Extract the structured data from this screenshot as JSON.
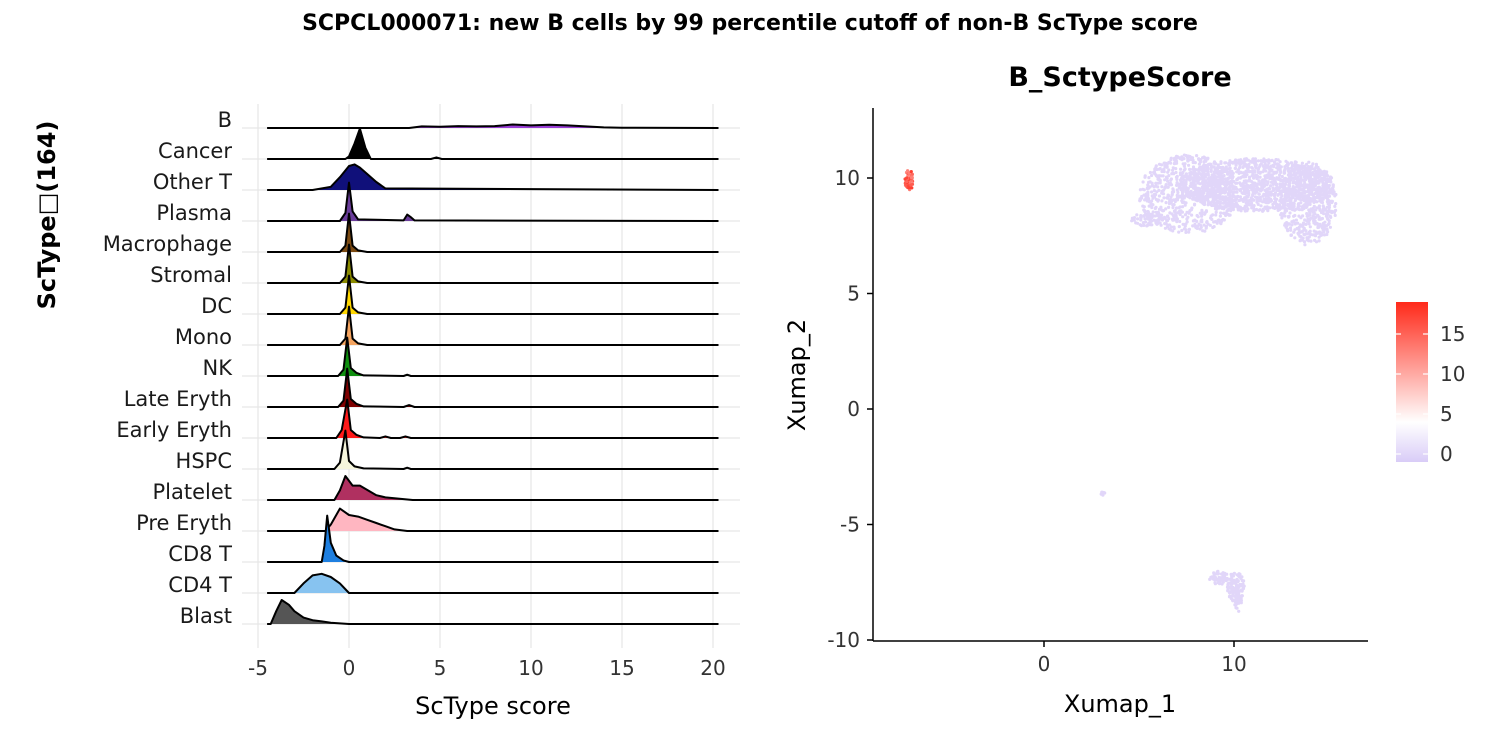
{
  "suptitle": "SCPCL000071: new B cells by 99 percentile cutoff of non-B ScType score",
  "chart_data": [
    {
      "type": "ridgeline",
      "xlabel": "ScType score",
      "ylabel": "ScType□(164)",
      "xlim": [
        -5,
        21
      ],
      "xticks": [
        -5,
        0,
        5,
        10,
        15,
        20
      ],
      "grid": true,
      "categories": [
        "B",
        "Cancer",
        "Other T",
        "Plasma",
        "Macrophage",
        "Stromal",
        "DC",
        "Mono",
        "NK",
        "Late Eryth",
        "Early Eryth",
        "HSPC",
        "Platelet",
        "Pre Eryth",
        "CD8 T",
        "CD4 T",
        "Blast"
      ],
      "colors": [
        "#9a3fd6",
        "#000000",
        "#10107a",
        "#6a3d9a",
        "#7b4a12",
        "#8b8b00",
        "#ffd700",
        "#f4a460",
        "#0f8f0f",
        "#7f0000",
        "#ff1a1a",
        "#f5f5dc",
        "#b03060",
        "#ffb6c1",
        "#1e7fe0",
        "#87c3f0",
        "#555555"
      ],
      "series": [
        {
          "name": "B",
          "x": [
            3.3,
            4,
            5,
            6,
            7,
            8,
            9,
            10,
            11,
            12,
            13,
            14,
            15,
            20.3
          ],
          "y": [
            0,
            0.05,
            0.04,
            0.06,
            0.05,
            0.06,
            0.11,
            0.08,
            0.1,
            0.08,
            0.05,
            0.02,
            0.01,
            0
          ]
        },
        {
          "name": "Cancer",
          "x": [
            -0.2,
            0,
            0.3,
            0.6,
            0.9,
            1.2,
            4.5,
            4.8,
            5.1,
            20.3
          ],
          "y": [
            0,
            0.08,
            0.48,
            0.95,
            0.35,
            0,
            0,
            0.05,
            0,
            0
          ]
        },
        {
          "name": "Other T",
          "x": [
            -2,
            -1,
            -0.5,
            0,
            0.3,
            0.6,
            1,
            1.5,
            2,
            20.3
          ],
          "y": [
            0,
            0.1,
            0.4,
            0.75,
            0.8,
            0.7,
            0.5,
            0.25,
            0.05,
            0
          ]
        },
        {
          "name": "Plasma",
          "x": [
            -0.5,
            -0.2,
            0,
            0.2,
            0.5,
            3,
            3.2,
            3.4,
            3.6,
            20.3
          ],
          "y": [
            0,
            0.25,
            1.2,
            0.3,
            0.05,
            0.02,
            0.2,
            0.12,
            0.02,
            0
          ]
        },
        {
          "name": "Macrophage",
          "x": [
            -0.5,
            -0.2,
            0,
            0.2,
            0.5,
            1,
            20.3
          ],
          "y": [
            0,
            0.2,
            1.2,
            0.2,
            0.05,
            0,
            0
          ]
        },
        {
          "name": "Stromal",
          "x": [
            -0.5,
            -0.2,
            0,
            0.2,
            0.5,
            1,
            20.3
          ],
          "y": [
            0,
            0.2,
            1.2,
            0.2,
            0.05,
            0,
            0
          ]
        },
        {
          "name": "DC",
          "x": [
            -0.5,
            -0.2,
            0,
            0.2,
            0.5,
            1,
            20.3
          ],
          "y": [
            0,
            0.2,
            1.2,
            0.2,
            0.05,
            0,
            0
          ]
        },
        {
          "name": "Mono",
          "x": [
            -0.5,
            -0.2,
            0,
            0.2,
            0.5,
            1,
            20.3
          ],
          "y": [
            0,
            0.2,
            1.2,
            0.2,
            0.05,
            0,
            0
          ]
        },
        {
          "name": "NK",
          "x": [
            -0.6,
            -0.3,
            -0.1,
            0.1,
            0.4,
            0.8,
            3,
            3.2,
            3.4,
            20.3
          ],
          "y": [
            0,
            0.2,
            1.2,
            0.25,
            0.1,
            0.02,
            0,
            0.04,
            0,
            0
          ]
        },
        {
          "name": "Late Eryth",
          "x": [
            -0.6,
            -0.3,
            -0.1,
            0.1,
            0.4,
            0.8,
            3,
            3.3,
            3.6,
            20.3
          ],
          "y": [
            0,
            0.2,
            1.2,
            0.25,
            0.1,
            0.02,
            0,
            0.06,
            0,
            0
          ]
        },
        {
          "name": "Early Eryth",
          "x": [
            -0.7,
            -0.4,
            -0.1,
            0.1,
            0.4,
            0.8,
            1.7,
            2,
            2.3,
            2.8,
            3.1,
            3.4,
            20.3
          ],
          "y": [
            0,
            0.25,
            1.2,
            0.25,
            0.1,
            0.02,
            0,
            0.05,
            0,
            0,
            0.05,
            0,
            0
          ]
        },
        {
          "name": "HSPC",
          "x": [
            -0.8,
            -0.5,
            -0.2,
            0,
            0.3,
            0.8,
            3,
            3.2,
            3.4,
            20.3
          ],
          "y": [
            0,
            0.2,
            1.2,
            0.25,
            0.08,
            0.02,
            0,
            0.04,
            0,
            0
          ]
        },
        {
          "name": "Platelet",
          "x": [
            -0.8,
            -0.5,
            -0.2,
            0.2,
            0.6,
            1.5,
            2,
            3.5,
            20.3
          ],
          "y": [
            0,
            0.3,
            0.75,
            0.45,
            0.45,
            0.15,
            0.08,
            0,
            0
          ]
        },
        {
          "name": "Pre Eryth",
          "x": [
            -1.3,
            -1,
            -0.5,
            0,
            0.5,
            1,
            1.5,
            2,
            2.5,
            3.2,
            20.3
          ],
          "y": [
            0,
            0.2,
            0.7,
            0.5,
            0.45,
            0.35,
            0.25,
            0.15,
            0.05,
            0,
            0
          ]
        },
        {
          "name": "CD8 T",
          "x": [
            -1.5,
            -1.35,
            -1.2,
            -1,
            -0.7,
            -0.3,
            0,
            20.3
          ],
          "y": [
            0,
            0.5,
            1.45,
            0.6,
            0.2,
            0.05,
            0,
            0
          ]
        },
        {
          "name": "CD4 T",
          "x": [
            -3,
            -2.5,
            -2,
            -1.5,
            -1,
            -0.5,
            0,
            20.3
          ],
          "y": [
            0,
            0.3,
            0.55,
            0.6,
            0.5,
            0.3,
            0,
            0
          ]
        },
        {
          "name": "Blast",
          "x": [
            -4.3,
            -4,
            -3.7,
            -3.3,
            -3,
            -2.5,
            -2,
            -1.5,
            -1,
            0,
            20.3
          ],
          "y": [
            0,
            0.4,
            0.75,
            0.6,
            0.4,
            0.2,
            0.12,
            0.08,
            0.04,
            0,
            0
          ]
        }
      ]
    },
    {
      "type": "scatter",
      "title": "B_SctypeScore",
      "xlabel": "Xumap_1",
      "ylabel": "Xumap_2",
      "xlim": [
        -9,
        17
      ],
      "ylim": [
        -10,
        13
      ],
      "xticks": [
        0,
        10
      ],
      "yticks": [
        -10,
        -5,
        0,
        5,
        10
      ],
      "grid": false,
      "colorbar": {
        "ticks": [
          0,
          5,
          10,
          15
        ],
        "range": [
          -1,
          19
        ],
        "colors": [
          "#d9ccf7",
          "#ffffff",
          "#ff2a1a"
        ]
      },
      "clusters": [
        {
          "cx": 11.2,
          "cy": 9.7,
          "rx": 4.1,
          "ry": 1.15,
          "n": 1300,
          "score": 0
        },
        {
          "cx": 7.6,
          "cy": 9.3,
          "rx": 2.6,
          "ry": 1.7,
          "n": 700,
          "score": 0
        },
        {
          "cx": 13.9,
          "cy": 8.9,
          "rx": 1.5,
          "ry": 1.8,
          "n": 500,
          "score": 0
        },
        {
          "cx": 5.5,
          "cy": 8.2,
          "rx": 0.9,
          "ry": 0.3,
          "n": 60,
          "score": 0
        },
        {
          "cx": 10.1,
          "cy": -7.7,
          "rx": 0.45,
          "ry": 0.65,
          "n": 120,
          "score": 0
        },
        {
          "cx": 9.2,
          "cy": -7.3,
          "rx": 0.5,
          "ry": 0.3,
          "n": 50,
          "score": 0
        },
        {
          "cx": 10.2,
          "cy": -8.4,
          "rx": 0.2,
          "ry": 0.4,
          "n": 30,
          "score": 0
        },
        {
          "cx": 3.1,
          "cy": -3.65,
          "rx": 0.1,
          "ry": 0.08,
          "n": 12,
          "score": 0
        },
        {
          "cx": -7.1,
          "cy": 9.9,
          "rx": 0.22,
          "ry": 0.45,
          "n": 60,
          "score": 15
        }
      ]
    }
  ]
}
